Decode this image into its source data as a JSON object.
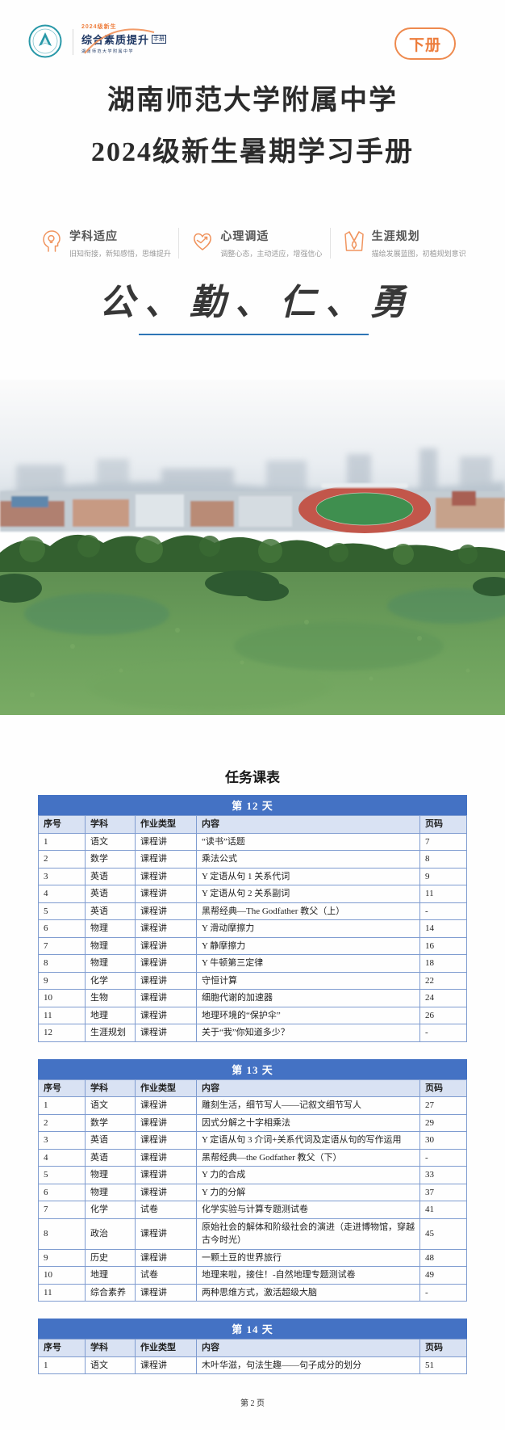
{
  "header": {
    "badge": "下册",
    "logo": {
      "emblem": "school-emblem",
      "top_text": "2024级新生",
      "main_text": "综合素质提升",
      "box_text": "手册",
      "bottom_text": "湖南师范大学附属中学"
    }
  },
  "title": {
    "line1": "湖南师范大学附属中学",
    "line2": "2024级新生暑期学习手册"
  },
  "features": [
    {
      "icon": "head-bulb-icon",
      "title": "学科适应",
      "subtitle": "旧知衔接，新知感悟，思维提升"
    },
    {
      "icon": "heart-icon",
      "title": "心理调适",
      "subtitle": "调整心态，主动适应，增强信心"
    },
    {
      "icon": "shirt-tie-icon",
      "title": "生涯规划",
      "subtitle": "描绘发展蓝图，初植规划意识"
    }
  ],
  "motto": "公、勤、仁、勇",
  "schedule": {
    "title": "任务课表",
    "columns": [
      "序号",
      "学科",
      "作业类型",
      "内容",
      "页码"
    ],
    "days": [
      {
        "label": "第 12 天",
        "rows": [
          [
            "1",
            "语文",
            "课程讲",
            "“读书”话题",
            "7"
          ],
          [
            "2",
            "数学",
            "课程讲",
            "乘法公式",
            "8"
          ],
          [
            "3",
            "英语",
            "课程讲",
            "Y 定语从句 1  关系代词",
            "9"
          ],
          [
            "4",
            "英语",
            "课程讲",
            "Y 定语从句 2  关系副词",
            "11"
          ],
          [
            "5",
            "英语",
            "课程讲",
            "黑帮经典—The Godfather  教父（上）",
            "-"
          ],
          [
            "6",
            "物理",
            "课程讲",
            "Y 滑动摩擦力",
            "14"
          ],
          [
            "7",
            "物理",
            "课程讲",
            "Y 静摩擦力",
            "16"
          ],
          [
            "8",
            "物理",
            "课程讲",
            "Y 牛顿第三定律",
            "18"
          ],
          [
            "9",
            "化学",
            "课程讲",
            "守恒计算",
            "22"
          ],
          [
            "10",
            "生物",
            "课程讲",
            "细胞代谢的加速器",
            "24"
          ],
          [
            "11",
            "地理",
            "课程讲",
            "地理环境的“保护伞”",
            "26"
          ],
          [
            "12",
            "生涯规划",
            "课程讲",
            "关于“我”你知道多少？",
            "-"
          ]
        ]
      },
      {
        "label": "第 13 天",
        "rows": [
          [
            "1",
            "语文",
            "课程讲",
            "雕刻生活，细节写人——记叙文细节写人",
            "27"
          ],
          [
            "2",
            "数学",
            "课程讲",
            "因式分解之十字相乘法",
            "29"
          ],
          [
            "3",
            "英语",
            "课程讲",
            "Y 定语从句 3  介词+关系代词及定语从句的写作运用",
            "30"
          ],
          [
            "4",
            "英语",
            "课程讲",
            "黑帮经典—the Godfather  教父（下）",
            "-"
          ],
          [
            "5",
            "物理",
            "课程讲",
            "Y 力的合成",
            "33"
          ],
          [
            "6",
            "物理",
            "课程讲",
            "Y 力的分解",
            "37"
          ],
          [
            "7",
            "化学",
            "试卷",
            "化学实验与计算专题测试卷",
            "41"
          ],
          [
            "8",
            "政治",
            "课程讲",
            "原始社会的解体和阶级社会的演进（走进博物馆，穿越古今时光）",
            "45"
          ],
          [
            "9",
            "历史",
            "课程讲",
            "一颗土豆的世界旅行",
            "48"
          ],
          [
            "10",
            "地理",
            "试卷",
            "地理来啦，接住！-自然地理专题测试卷",
            "49"
          ],
          [
            "11",
            "综合素养",
            "课程讲",
            "两种思维方式，激活超级大脑",
            "-"
          ]
        ]
      },
      {
        "label": "第 14 天",
        "rows": [
          [
            "1",
            "语文",
            "课程讲",
            "木叶华滋，句法生趣——句子成分的划分",
            "51"
          ]
        ]
      }
    ]
  },
  "footer": "第 2 页",
  "colors": {
    "accent_orange": "#ed8a50",
    "navy": "#1f3864",
    "table_bar": "#4472c4",
    "table_header_bg": "#d9e2f3",
    "table_border": "#7f9cd0",
    "motto_underline": "#2e75b6",
    "emblem_teal": "#2898a8"
  }
}
